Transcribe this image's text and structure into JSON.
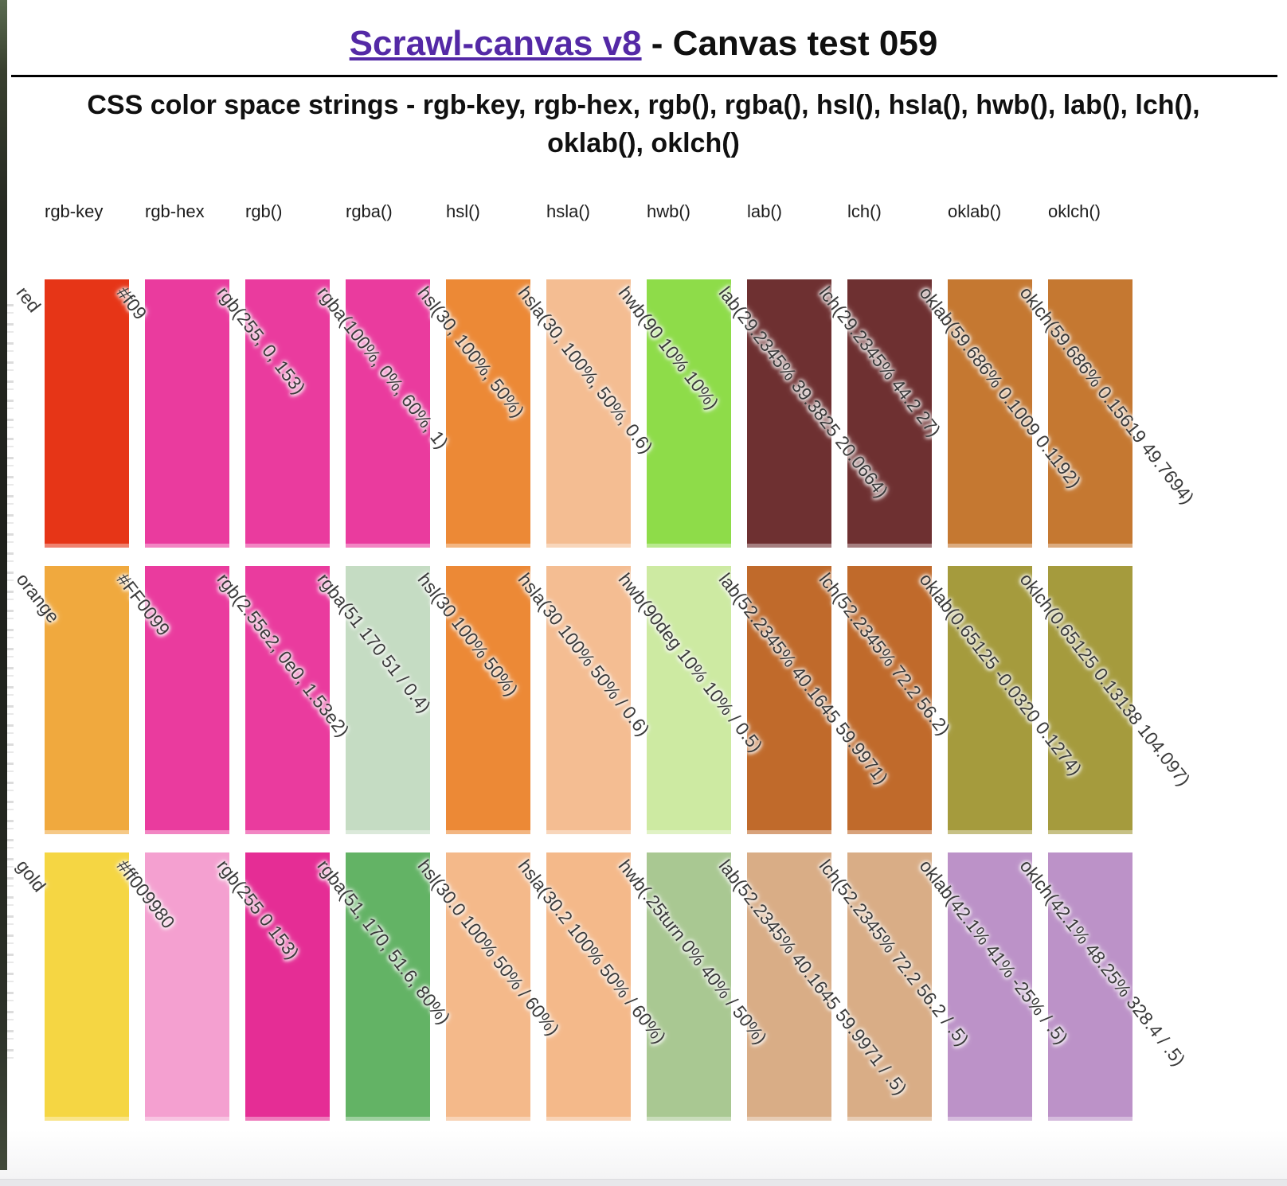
{
  "header": {
    "link_text": "Scrawl-canvas v8",
    "title_suffix": " - Canvas test 059",
    "subtitle": "CSS color space strings - rgb-key, rgb-hex, rgb(), rgba(), hsl(), hsla(), hwb(), lab(), lch(), oklab(), oklch()",
    "link_color": "#5429a6"
  },
  "grid": {
    "columns": [
      "rgb-key",
      "rgb-hex",
      "rgb()",
      "rgba()",
      "hsl()",
      "hsla()",
      "hwb()",
      "lab()",
      "lch()",
      "oklab()",
      "oklch()"
    ],
    "rows": [
      {
        "name": "red-row",
        "cells": [
          {
            "label": "red",
            "color": "#e63517"
          },
          {
            "label": "#f09",
            "color": "#ea3b9e"
          },
          {
            "label": "rgb(255, 0, 153)",
            "color": "#ea3b9e"
          },
          {
            "label": "rgba(100%, 0%, 60%, 1)",
            "color": "#ea3b9e"
          },
          {
            "label": "hsl(30, 100%, 50%)",
            "color": "#ec8936"
          },
          {
            "label": "hsla(30, 100%, 50%, 0.6)",
            "color": "#f4bd92"
          },
          {
            "label": "hwb(90 10% 10%)",
            "color": "#8edc49"
          },
          {
            "label": "lab(29.2345% 39.3825 20.0664)",
            "color": "#6e3031"
          },
          {
            "label": "lch(29.2345% 44.2 27)",
            "color": "#6e3031"
          },
          {
            "label": "oklab(59.686% 0.1009 0.1192)",
            "color": "#c57831"
          },
          {
            "label": "oklch(59.686% 0.15619 49.7694)",
            "color": "#c57831"
          }
        ]
      },
      {
        "name": "orange-row",
        "cells": [
          {
            "label": "orange",
            "color": "#f0a93e"
          },
          {
            "label": "#FF0099",
            "color": "#ea3b9e"
          },
          {
            "label": "rgb(2.55e2, 0e0, 1.53e2)",
            "color": "#ea3b9e"
          },
          {
            "label": "rgba(51 170 51 / 0.4)",
            "color": "#c5dcc3"
          },
          {
            "label": "hsl(30 100% 50%)",
            "color": "#ec8936"
          },
          {
            "label": "hsla(30 100% 50% / 0.6)",
            "color": "#f4bd92"
          },
          {
            "label": "hwb(90deg 10% 10% / 0.5)",
            "color": "#cdeaa2"
          },
          {
            "label": "lab(52.2345% 40.1645 59.9971)",
            "color": "#c06a2b"
          },
          {
            "label": "lch(52.2345% 72.2 56.2)",
            "color": "#c06a2b"
          },
          {
            "label": "oklab(0.65125 -0.0320 0.1274)",
            "color": "#a59b3d"
          },
          {
            "label": "oklch(0.65125 0.13138 104.097)",
            "color": "#a59b3d"
          }
        ]
      },
      {
        "name": "gold-row",
        "cells": [
          {
            "label": "gold",
            "color": "#f5d643"
          },
          {
            "label": "#ff009980",
            "color": "#f4a0d0"
          },
          {
            "label": "rgb(255 0 153)",
            "color": "#e52d95"
          },
          {
            "label": "rgba(51, 170, 51.6, 80%)",
            "color": "#63b365"
          },
          {
            "label": "hsl(30.0 100% 50% / 60%)",
            "color": "#f4b98a"
          },
          {
            "label": "hsla(30.2 100% 50% / 60%)",
            "color": "#f4b98a"
          },
          {
            "label": "hwb(.25turn 0% 40% / 50%)",
            "color": "#a9c892"
          },
          {
            "label": "lab(52.2345% 40.1645 59.9971 / .5)",
            "color": "#d9ad86"
          },
          {
            "label": "lch(52.2345% 72.2 56.2 / .5)",
            "color": "#d9ad86"
          },
          {
            "label": "oklab(42.1% 41% -25% / .5)",
            "color": "#bc92c8"
          },
          {
            "label": "oklch(42.1% 48.25% 328.4 / .5)",
            "color": "#bc92c8"
          }
        ]
      }
    ]
  }
}
